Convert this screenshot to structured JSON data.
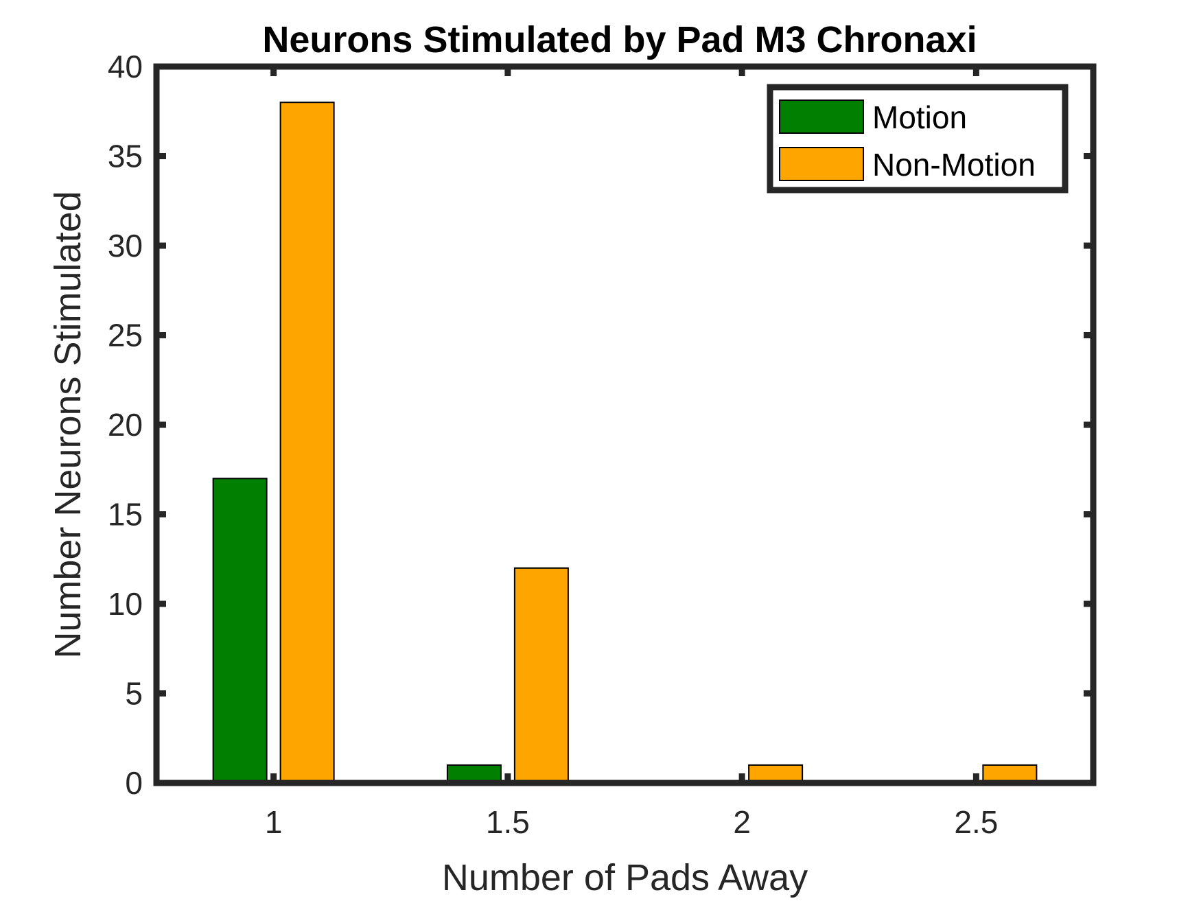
{
  "chart_data": {
    "type": "bar",
    "title": "Neurons Stimulated by Pad M3 Chronaxi",
    "xlabel": "Number of Pads Away",
    "ylabel": "Number Neurons Stimulated",
    "categories": [
      "1",
      "1.5",
      "2",
      "2.5"
    ],
    "x": [
      1,
      1.5,
      2,
      2.5
    ],
    "xlim": [
      0.75,
      2.75
    ],
    "ylim": [
      0,
      40
    ],
    "yticks": [
      0,
      5,
      10,
      15,
      20,
      25,
      30,
      35,
      40
    ],
    "series": [
      {
        "name": "Motion",
        "color": "#007f00",
        "values": [
          17,
          1,
          0,
          0
        ]
      },
      {
        "name": "Non-Motion",
        "color": "#ffa500",
        "values": [
          38,
          12,
          1,
          1
        ]
      }
    ],
    "legend": "top-right",
    "grid": false,
    "axis_color": "#262626"
  }
}
